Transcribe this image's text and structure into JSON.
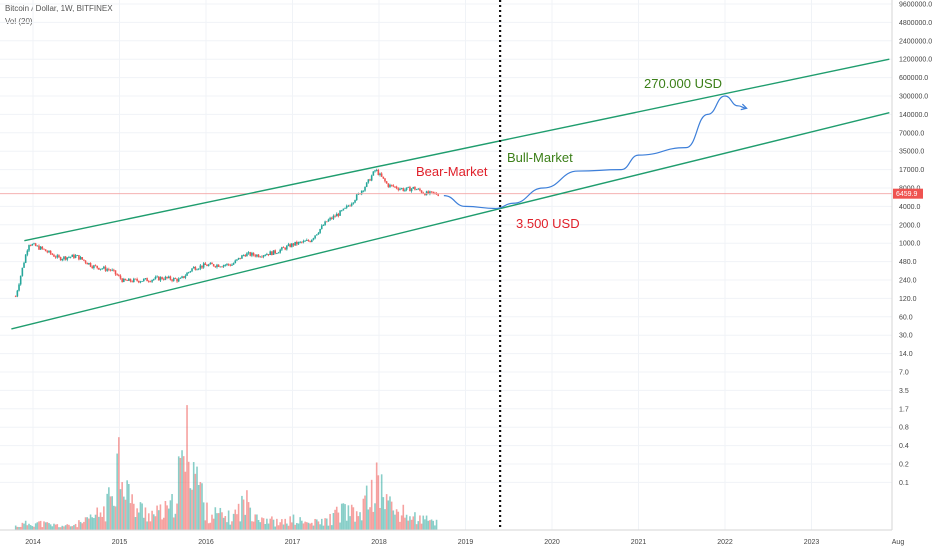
{
  "header": {
    "symbol": "Bitcoin / Dollar, 1W, BITFINEX",
    "volume_indicator": "Vol (20)"
  },
  "colors": {
    "up": "#26a69a",
    "down": "#ef5350",
    "channel": "#1f9d6e",
    "forecast": "#3d7fd9",
    "bull_label": "#3b7f18",
    "bear_label": "#e0202a",
    "price_line": "#f3a6a6"
  },
  "chart_data": {
    "type": "candlestick",
    "price_scale": "log",
    "x_ticks": [
      "2014",
      "2015",
      "2016",
      "2017",
      "2018",
      "2019",
      "2020",
      "2021",
      "2022",
      "2023",
      "Aug"
    ],
    "y_ticks": [
      "9600000.0",
      "4800000.0",
      "2400000.0",
      "1200000.0",
      "600000.0",
      "300000.0",
      "140000.0",
      "70000.0",
      "35000.0",
      "17000.0",
      "8000.0",
      "4000.0",
      "2000.0",
      "1000.0",
      "480.0",
      "240.0",
      "120.0",
      "60.0",
      "30.0",
      "14.0",
      "7.0",
      "3.5",
      "1.7",
      "0.8",
      "0.4",
      "0.2",
      "0.1"
    ],
    "last_price": "6459.9",
    "price_series": [
      {
        "t": 2013.8,
        "v": 130
      },
      {
        "t": 2013.95,
        "v": 1000
      },
      {
        "t": 2014.1,
        "v": 800
      },
      {
        "t": 2014.3,
        "v": 550
      },
      {
        "t": 2014.5,
        "v": 600
      },
      {
        "t": 2014.7,
        "v": 400
      },
      {
        "t": 2014.9,
        "v": 350
      },
      {
        "t": 2015.05,
        "v": 230
      },
      {
        "t": 2015.3,
        "v": 240
      },
      {
        "t": 2015.5,
        "v": 260
      },
      {
        "t": 2015.7,
        "v": 240
      },
      {
        "t": 2015.85,
        "v": 380
      },
      {
        "t": 2016.0,
        "v": 420
      },
      {
        "t": 2016.3,
        "v": 430
      },
      {
        "t": 2016.45,
        "v": 650
      },
      {
        "t": 2016.6,
        "v": 620
      },
      {
        "t": 2016.8,
        "v": 700
      },
      {
        "t": 2017.0,
        "v": 950
      },
      {
        "t": 2017.2,
        "v": 1100
      },
      {
        "t": 2017.4,
        "v": 2300
      },
      {
        "t": 2017.6,
        "v": 3500
      },
      {
        "t": 2017.75,
        "v": 6000
      },
      {
        "t": 2017.85,
        "v": 9000
      },
      {
        "t": 2017.96,
        "v": 17000
      },
      {
        "t": 2018.1,
        "v": 9000
      },
      {
        "t": 2018.3,
        "v": 7500
      },
      {
        "t": 2018.4,
        "v": 8000
      },
      {
        "t": 2018.55,
        "v": 6500
      },
      {
        "t": 2018.7,
        "v": 6400
      }
    ],
    "forecast_path": [
      {
        "t": 2018.75,
        "v": 6000
      },
      {
        "t": 2019.0,
        "v": 4000
      },
      {
        "t": 2019.35,
        "v": 3700
      },
      {
        "t": 2019.55,
        "v": 4500
      },
      {
        "t": 2019.9,
        "v": 8000
      },
      {
        "t": 2020.3,
        "v": 16000
      },
      {
        "t": 2020.8,
        "v": 17000
      },
      {
        "t": 2021.0,
        "v": 30000
      },
      {
        "t": 2021.55,
        "v": 40000
      },
      {
        "t": 2021.8,
        "v": 140000
      },
      {
        "t": 2022.0,
        "v": 300000
      },
      {
        "t": 2022.15,
        "v": 200000
      },
      {
        "t": 2022.25,
        "v": 180000
      }
    ],
    "channel_upper": [
      {
        "t": 2013.9,
        "v": 1100
      },
      {
        "t": 2023.9,
        "v": 1200000
      }
    ],
    "channel_lower": [
      {
        "t": 2013.75,
        "v": 38
      },
      {
        "t": 2023.9,
        "v": 150000
      }
    ],
    "halving_marker": {
      "t": 2019.4
    },
    "volume_series": [
      {
        "t": 2013.8,
        "v": 0.15
      },
      {
        "t": 2014.0,
        "v": 0.3
      },
      {
        "t": 2014.2,
        "v": 0.2
      },
      {
        "t": 2014.4,
        "v": 0.15
      },
      {
        "t": 2014.6,
        "v": 0.3
      },
      {
        "t": 2014.85,
        "v": 0.8
      },
      {
        "t": 2015.0,
        "v": 3.0
      },
      {
        "t": 2015.15,
        "v": 0.9
      },
      {
        "t": 2015.4,
        "v": 0.6
      },
      {
        "t": 2015.6,
        "v": 0.8
      },
      {
        "t": 2015.8,
        "v": 3.5
      },
      {
        "t": 2016.0,
        "v": 0.7
      },
      {
        "t": 2016.3,
        "v": 0.45
      },
      {
        "t": 2016.45,
        "v": 1.1
      },
      {
        "t": 2016.65,
        "v": 0.5
      },
      {
        "t": 2016.85,
        "v": 0.25
      },
      {
        "t": 2017.0,
        "v": 0.4
      },
      {
        "t": 2017.2,
        "v": 0.25
      },
      {
        "t": 2017.4,
        "v": 0.35
      },
      {
        "t": 2017.6,
        "v": 0.8
      },
      {
        "t": 2017.75,
        "v": 0.5
      },
      {
        "t": 2017.9,
        "v": 1.4
      },
      {
        "t": 2018.0,
        "v": 1.8
      },
      {
        "t": 2018.15,
        "v": 0.8
      },
      {
        "t": 2018.3,
        "v": 0.6
      },
      {
        "t": 2018.5,
        "v": 0.4
      },
      {
        "t": 2018.68,
        "v": 0.3
      }
    ],
    "annotations": {
      "bear_market": "Bear-Market",
      "bull_market": "Bull-Market",
      "target_high": "270.000 USD",
      "target_low": "3.500 USD"
    }
  }
}
